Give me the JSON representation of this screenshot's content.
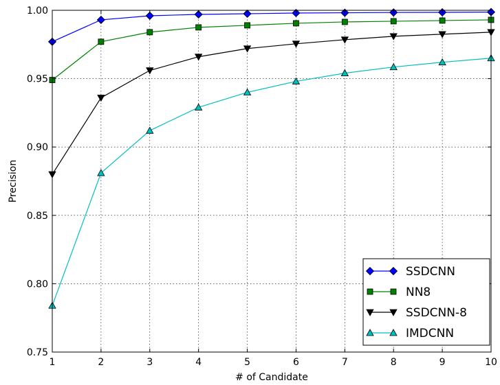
{
  "chart_data": {
    "type": "line",
    "xlabel": "# of Candidate",
    "ylabel": "Precision",
    "x": [
      1,
      2,
      3,
      4,
      5,
      6,
      7,
      8,
      9,
      10
    ],
    "xlim": [
      1,
      10
    ],
    "ylim": [
      0.75,
      1.0
    ],
    "xticks": [
      "1",
      "2",
      "3",
      "4",
      "5",
      "6",
      "7",
      "8",
      "9",
      "10"
    ],
    "yticks": [
      "0.75",
      "0.80",
      "0.85",
      "0.90",
      "0.95",
      "1.00"
    ],
    "grid": true,
    "legend_position": "lower-right",
    "series": [
      {
        "name": "SSDCNN",
        "color": "#0000ff",
        "marker": "diamond",
        "values": [
          0.977,
          0.993,
          0.996,
          0.997,
          0.9975,
          0.998,
          0.9982,
          0.9984,
          0.9985,
          0.9987
        ]
      },
      {
        "name": "NN8",
        "color": "#008000",
        "marker": "square",
        "values": [
          0.949,
          0.977,
          0.984,
          0.9875,
          0.989,
          0.9905,
          0.9915,
          0.992,
          0.9925,
          0.993
        ]
      },
      {
        "name": "SSDCNN-8",
        "color": "#000000",
        "marker": "triangle-down",
        "values": [
          0.88,
          0.936,
          0.956,
          0.966,
          0.972,
          0.9755,
          0.9785,
          0.981,
          0.9825,
          0.984
        ]
      },
      {
        "name": "IMDCNN",
        "color": "#00bfbf",
        "marker": "triangle-up",
        "values": [
          0.784,
          0.881,
          0.912,
          0.929,
          0.94,
          0.948,
          0.954,
          0.9585,
          0.962,
          0.965
        ]
      }
    ]
  }
}
